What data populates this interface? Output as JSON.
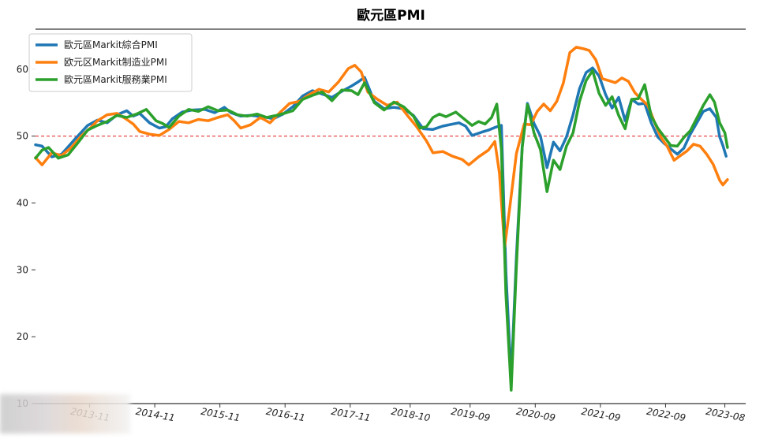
{
  "chart_data": {
    "type": "line",
    "title": "歐元區PMI",
    "xlabel": "",
    "ylabel": "",
    "ylim": [
      10,
      66
    ],
    "yticks": [
      10,
      20,
      30,
      40,
      50,
      60
    ],
    "xlim": [
      2013.0,
      2023.9
    ],
    "xticks": [
      {
        "value": 2013.83,
        "label": "2013-11"
      },
      {
        "value": 2014.83,
        "label": "2014-11"
      },
      {
        "value": 2015.83,
        "label": "2015-11"
      },
      {
        "value": 2016.83,
        "label": "2016-11"
      },
      {
        "value": 2017.83,
        "label": "2017-11"
      },
      {
        "value": 2018.75,
        "label": "2018-10"
      },
      {
        "value": 2019.67,
        "label": "2019-09"
      },
      {
        "value": 2020.67,
        "label": "2020-09"
      },
      {
        "value": 2021.67,
        "label": "2021-09"
      },
      {
        "value": 2022.67,
        "label": "2022-09"
      },
      {
        "value": 2023.58,
        "label": "2023-08"
      }
    ],
    "reference_line": {
      "y": 50,
      "color": "#e41a1c",
      "style": "dashed"
    },
    "legend_position": "top-left",
    "grid": false,
    "series": [
      {
        "name": "歐元區Markit綜合PMI",
        "color": "#1f77b4",
        "points": [
          [
            2013.0,
            48.7
          ],
          [
            2013.1,
            48.5
          ],
          [
            2013.25,
            46.9
          ],
          [
            2013.4,
            47.3
          ],
          [
            2013.6,
            49.5
          ],
          [
            2013.8,
            51.6
          ],
          [
            2013.95,
            52.4
          ],
          [
            2014.1,
            52.0
          ],
          [
            2014.25,
            53.2
          ],
          [
            2014.4,
            53.8
          ],
          [
            2014.5,
            53.0
          ],
          [
            2014.6,
            53.4
          ],
          [
            2014.75,
            52.0
          ],
          [
            2014.9,
            51.2
          ],
          [
            2015.0,
            51.4
          ],
          [
            2015.1,
            52.6
          ],
          [
            2015.25,
            53.6
          ],
          [
            2015.4,
            53.9
          ],
          [
            2015.6,
            54.0
          ],
          [
            2015.75,
            53.5
          ],
          [
            2015.9,
            54.3
          ],
          [
            2016.0,
            53.5
          ],
          [
            2016.15,
            53.0
          ],
          [
            2016.3,
            53.1
          ],
          [
            2016.5,
            52.9
          ],
          [
            2016.65,
            52.6
          ],
          [
            2016.8,
            53.3
          ],
          [
            2016.95,
            54.4
          ],
          [
            2017.1,
            56.0
          ],
          [
            2017.25,
            56.8
          ],
          [
            2017.4,
            56.3
          ],
          [
            2017.55,
            55.8
          ],
          [
            2017.7,
            56.7
          ],
          [
            2017.85,
            57.5
          ],
          [
            2017.95,
            58.1
          ],
          [
            2018.05,
            58.8
          ],
          [
            2018.2,
            55.2
          ],
          [
            2018.35,
            54.1
          ],
          [
            2018.5,
            54.3
          ],
          [
            2018.65,
            54.1
          ],
          [
            2018.8,
            53.1
          ],
          [
            2018.95,
            51.1
          ],
          [
            2019.1,
            51.0
          ],
          [
            2019.25,
            51.5
          ],
          [
            2019.4,
            51.8
          ],
          [
            2019.5,
            52.0
          ],
          [
            2019.6,
            51.5
          ],
          [
            2019.7,
            50.1
          ],
          [
            2019.85,
            50.6
          ],
          [
            2019.95,
            50.9
          ],
          [
            2020.05,
            51.3
          ],
          [
            2020.15,
            51.6
          ],
          [
            2020.22,
            29.7
          ],
          [
            2020.3,
            13.6
          ],
          [
            2020.38,
            31.9
          ],
          [
            2020.47,
            48.5
          ],
          [
            2020.55,
            54.9
          ],
          [
            2020.65,
            51.9
          ],
          [
            2020.75,
            50.0
          ],
          [
            2020.85,
            45.3
          ],
          [
            2020.95,
            49.1
          ],
          [
            2021.05,
            47.8
          ],
          [
            2021.15,
            49.9
          ],
          [
            2021.25,
            53.2
          ],
          [
            2021.35,
            57.1
          ],
          [
            2021.45,
            59.5
          ],
          [
            2021.55,
            60.2
          ],
          [
            2021.65,
            59.0
          ],
          [
            2021.75,
            56.2
          ],
          [
            2021.85,
            54.2
          ],
          [
            2021.95,
            55.8
          ],
          [
            2022.05,
            52.3
          ],
          [
            2022.15,
            55.5
          ],
          [
            2022.25,
            54.8
          ],
          [
            2022.35,
            54.9
          ],
          [
            2022.45,
            52.0
          ],
          [
            2022.55,
            49.9
          ],
          [
            2022.65,
            48.9
          ],
          [
            2022.75,
            48.1
          ],
          [
            2022.85,
            47.3
          ],
          [
            2022.95,
            48.2
          ],
          [
            2023.05,
            50.3
          ],
          [
            2023.15,
            52.0
          ],
          [
            2023.25,
            53.7
          ],
          [
            2023.35,
            54.1
          ],
          [
            2023.45,
            52.8
          ],
          [
            2023.5,
            49.9
          ],
          [
            2023.55,
            48.6
          ],
          [
            2023.6,
            47.0
          ]
        ]
      },
      {
        "name": "欧元区Markit制造业PMI",
        "color": "#ff7f0e",
        "points": [
          [
            2013.0,
            46.8
          ],
          [
            2013.1,
            45.7
          ],
          [
            2013.25,
            47.5
          ],
          [
            2013.4,
            47.1
          ],
          [
            2013.55,
            48.3
          ],
          [
            2013.7,
            50.0
          ],
          [
            2013.85,
            51.3
          ],
          [
            2013.95,
            52.3
          ],
          [
            2014.1,
            53.2
          ],
          [
            2014.25,
            53.4
          ],
          [
            2014.4,
            52.5
          ],
          [
            2014.5,
            51.8
          ],
          [
            2014.6,
            50.7
          ],
          [
            2014.75,
            50.3
          ],
          [
            2014.9,
            50.1
          ],
          [
            2015.05,
            51.0
          ],
          [
            2015.2,
            52.2
          ],
          [
            2015.35,
            52.0
          ],
          [
            2015.5,
            52.5
          ],
          [
            2015.65,
            52.3
          ],
          [
            2015.8,
            52.8
          ],
          [
            2015.95,
            53.2
          ],
          [
            2016.05,
            52.3
          ],
          [
            2016.15,
            51.2
          ],
          [
            2016.3,
            51.7
          ],
          [
            2016.45,
            52.8
          ],
          [
            2016.6,
            52.0
          ],
          [
            2016.75,
            53.5
          ],
          [
            2016.9,
            54.9
          ],
          [
            2017.05,
            55.2
          ],
          [
            2017.2,
            56.2
          ],
          [
            2017.35,
            57.0
          ],
          [
            2017.5,
            56.6
          ],
          [
            2017.65,
            58.1
          ],
          [
            2017.8,
            60.1
          ],
          [
            2017.9,
            60.6
          ],
          [
            2018.0,
            59.6
          ],
          [
            2018.1,
            56.6
          ],
          [
            2018.25,
            55.5
          ],
          [
            2018.4,
            54.6
          ],
          [
            2018.55,
            55.1
          ],
          [
            2018.7,
            53.2
          ],
          [
            2018.85,
            51.4
          ],
          [
            2019.0,
            49.3
          ],
          [
            2019.1,
            47.5
          ],
          [
            2019.25,
            47.7
          ],
          [
            2019.4,
            47.0
          ],
          [
            2019.55,
            46.5
          ],
          [
            2019.65,
            45.7
          ],
          [
            2019.8,
            46.9
          ],
          [
            2019.95,
            47.9
          ],
          [
            2020.05,
            49.2
          ],
          [
            2020.12,
            44.5
          ],
          [
            2020.2,
            33.4
          ],
          [
            2020.28,
            39.4
          ],
          [
            2020.38,
            47.4
          ],
          [
            2020.5,
            51.8
          ],
          [
            2020.6,
            51.7
          ],
          [
            2020.7,
            53.7
          ],
          [
            2020.8,
            54.8
          ],
          [
            2020.9,
            53.8
          ],
          [
            2021.0,
            55.2
          ],
          [
            2021.1,
            57.9
          ],
          [
            2021.2,
            62.5
          ],
          [
            2021.3,
            63.3
          ],
          [
            2021.4,
            63.1
          ],
          [
            2021.5,
            62.8
          ],
          [
            2021.6,
            61.4
          ],
          [
            2021.7,
            58.6
          ],
          [
            2021.8,
            58.3
          ],
          [
            2021.9,
            58.0
          ],
          [
            2022.0,
            58.7
          ],
          [
            2022.1,
            58.2
          ],
          [
            2022.2,
            56.5
          ],
          [
            2022.3,
            55.5
          ],
          [
            2022.4,
            54.6
          ],
          [
            2022.5,
            52.1
          ],
          [
            2022.6,
            49.8
          ],
          [
            2022.7,
            48.4
          ],
          [
            2022.8,
            46.4
          ],
          [
            2022.9,
            47.1
          ],
          [
            2023.0,
            47.8
          ],
          [
            2023.1,
            48.8
          ],
          [
            2023.2,
            48.5
          ],
          [
            2023.3,
            47.3
          ],
          [
            2023.4,
            45.8
          ],
          [
            2023.5,
            43.4
          ],
          [
            2023.55,
            42.7
          ],
          [
            2023.62,
            43.5
          ]
        ]
      },
      {
        "name": "歐元區Markit服務業PMI",
        "color": "#2ca02c",
        "points": [
          [
            2013.0,
            46.7
          ],
          [
            2013.1,
            47.9
          ],
          [
            2013.2,
            48.3
          ],
          [
            2013.35,
            46.7
          ],
          [
            2013.5,
            47.2
          ],
          [
            2013.65,
            49.0
          ],
          [
            2013.8,
            50.9
          ],
          [
            2013.95,
            51.6
          ],
          [
            2014.1,
            52.2
          ],
          [
            2014.25,
            53.1
          ],
          [
            2014.4,
            52.8
          ],
          [
            2014.55,
            53.3
          ],
          [
            2014.7,
            54.0
          ],
          [
            2014.85,
            52.3
          ],
          [
            2014.95,
            51.9
          ],
          [
            2015.05,
            51.3
          ],
          [
            2015.2,
            53.0
          ],
          [
            2015.35,
            54.0
          ],
          [
            2015.5,
            53.7
          ],
          [
            2015.65,
            54.4
          ],
          [
            2015.8,
            53.8
          ],
          [
            2015.95,
            53.9
          ],
          [
            2016.1,
            53.2
          ],
          [
            2016.25,
            53.0
          ],
          [
            2016.4,
            53.3
          ],
          [
            2016.55,
            52.8
          ],
          [
            2016.7,
            53.1
          ],
          [
            2016.85,
            53.5
          ],
          [
            2016.95,
            53.8
          ],
          [
            2017.1,
            55.5
          ],
          [
            2017.25,
            56.1
          ],
          [
            2017.4,
            56.6
          ],
          [
            2017.55,
            55.3
          ],
          [
            2017.7,
            56.9
          ],
          [
            2017.85,
            56.8
          ],
          [
            2017.95,
            56.2
          ],
          [
            2018.05,
            58.0
          ],
          [
            2018.2,
            55.0
          ],
          [
            2018.35,
            53.9
          ],
          [
            2018.5,
            55.1
          ],
          [
            2018.65,
            54.4
          ],
          [
            2018.8,
            53.0
          ],
          [
            2018.9,
            51.2
          ],
          [
            2019.0,
            51.4
          ],
          [
            2019.1,
            52.8
          ],
          [
            2019.2,
            53.3
          ],
          [
            2019.3,
            52.9
          ],
          [
            2019.45,
            53.6
          ],
          [
            2019.6,
            52.4
          ],
          [
            2019.7,
            51.6
          ],
          [
            2019.8,
            52.2
          ],
          [
            2019.9,
            51.8
          ],
          [
            2020.0,
            52.8
          ],
          [
            2020.08,
            54.8
          ],
          [
            2020.15,
            48.0
          ],
          [
            2020.22,
            26.4
          ],
          [
            2020.3,
            12.0
          ],
          [
            2020.38,
            30.5
          ],
          [
            2020.47,
            48.3
          ],
          [
            2020.55,
            54.7
          ],
          [
            2020.65,
            50.5
          ],
          [
            2020.75,
            48.0
          ],
          [
            2020.85,
            41.7
          ],
          [
            2020.95,
            46.4
          ],
          [
            2021.05,
            45.0
          ],
          [
            2021.15,
            48.5
          ],
          [
            2021.25,
            50.5
          ],
          [
            2021.35,
            55.2
          ],
          [
            2021.45,
            58.3
          ],
          [
            2021.55,
            59.8
          ],
          [
            2021.65,
            56.4
          ],
          [
            2021.75,
            54.6
          ],
          [
            2021.85,
            55.9
          ],
          [
            2021.95,
            53.1
          ],
          [
            2022.05,
            51.1
          ],
          [
            2022.15,
            55.5
          ],
          [
            2022.25,
            55.6
          ],
          [
            2022.35,
            57.7
          ],
          [
            2022.45,
            53.0
          ],
          [
            2022.55,
            51.2
          ],
          [
            2022.65,
            49.9
          ],
          [
            2022.75,
            48.6
          ],
          [
            2022.85,
            48.5
          ],
          [
            2022.95,
            49.8
          ],
          [
            2023.05,
            50.8
          ],
          [
            2023.15,
            52.7
          ],
          [
            2023.25,
            54.6
          ],
          [
            2023.35,
            56.2
          ],
          [
            2023.42,
            55.1
          ],
          [
            2023.5,
            52.0
          ],
          [
            2023.58,
            50.5
          ],
          [
            2023.62,
            48.3
          ]
        ]
      }
    ]
  }
}
